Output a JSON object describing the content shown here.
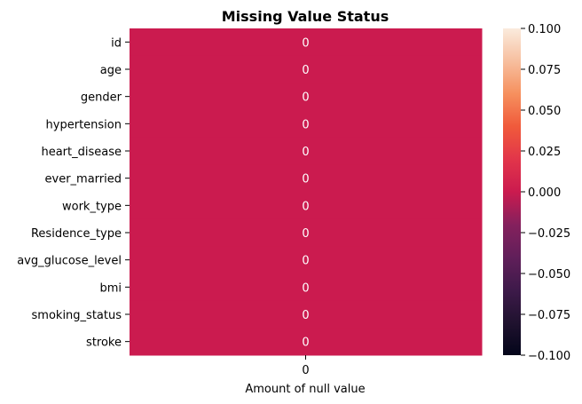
{
  "chart_data": {
    "type": "heatmap",
    "title": "Missing Value Status",
    "xlabel": "Amount of null value",
    "ylabel": "",
    "x_categories": [
      "0"
    ],
    "y_categories": [
      "id",
      "age",
      "gender",
      "hypertension",
      "heart_disease",
      "ever_married",
      "work_type",
      "Residence_type",
      "avg_glucose_level",
      "bmi",
      "smoking_status",
      "stroke"
    ],
    "values": [
      [
        0
      ],
      [
        0
      ],
      [
        0
      ],
      [
        0
      ],
      [
        0
      ],
      [
        0
      ],
      [
        0
      ],
      [
        0
      ],
      [
        0
      ],
      [
        0
      ],
      [
        0
      ],
      [
        0
      ]
    ],
    "cell_labels": [
      "0",
      "0",
      "0",
      "0",
      "0",
      "0",
      "0",
      "0",
      "0",
      "0",
      "0",
      "0"
    ],
    "colorbar": {
      "vmin": -0.1,
      "vmax": 0.1,
      "ticks": [
        "0.100",
        "0.075",
        "0.050",
        "0.025",
        "0.000",
        "−0.025",
        "−0.050",
        "−0.075",
        "−0.100"
      ],
      "tick_values": [
        0.1,
        0.075,
        0.05,
        0.025,
        0.0,
        -0.025,
        -0.05,
        -0.075,
        -0.1
      ]
    },
    "colormap": "rocket",
    "cell_color": "#cb1b4f",
    "cell_label_color": "#ffffff",
    "grid": false,
    "legend": "colorbar-right"
  }
}
